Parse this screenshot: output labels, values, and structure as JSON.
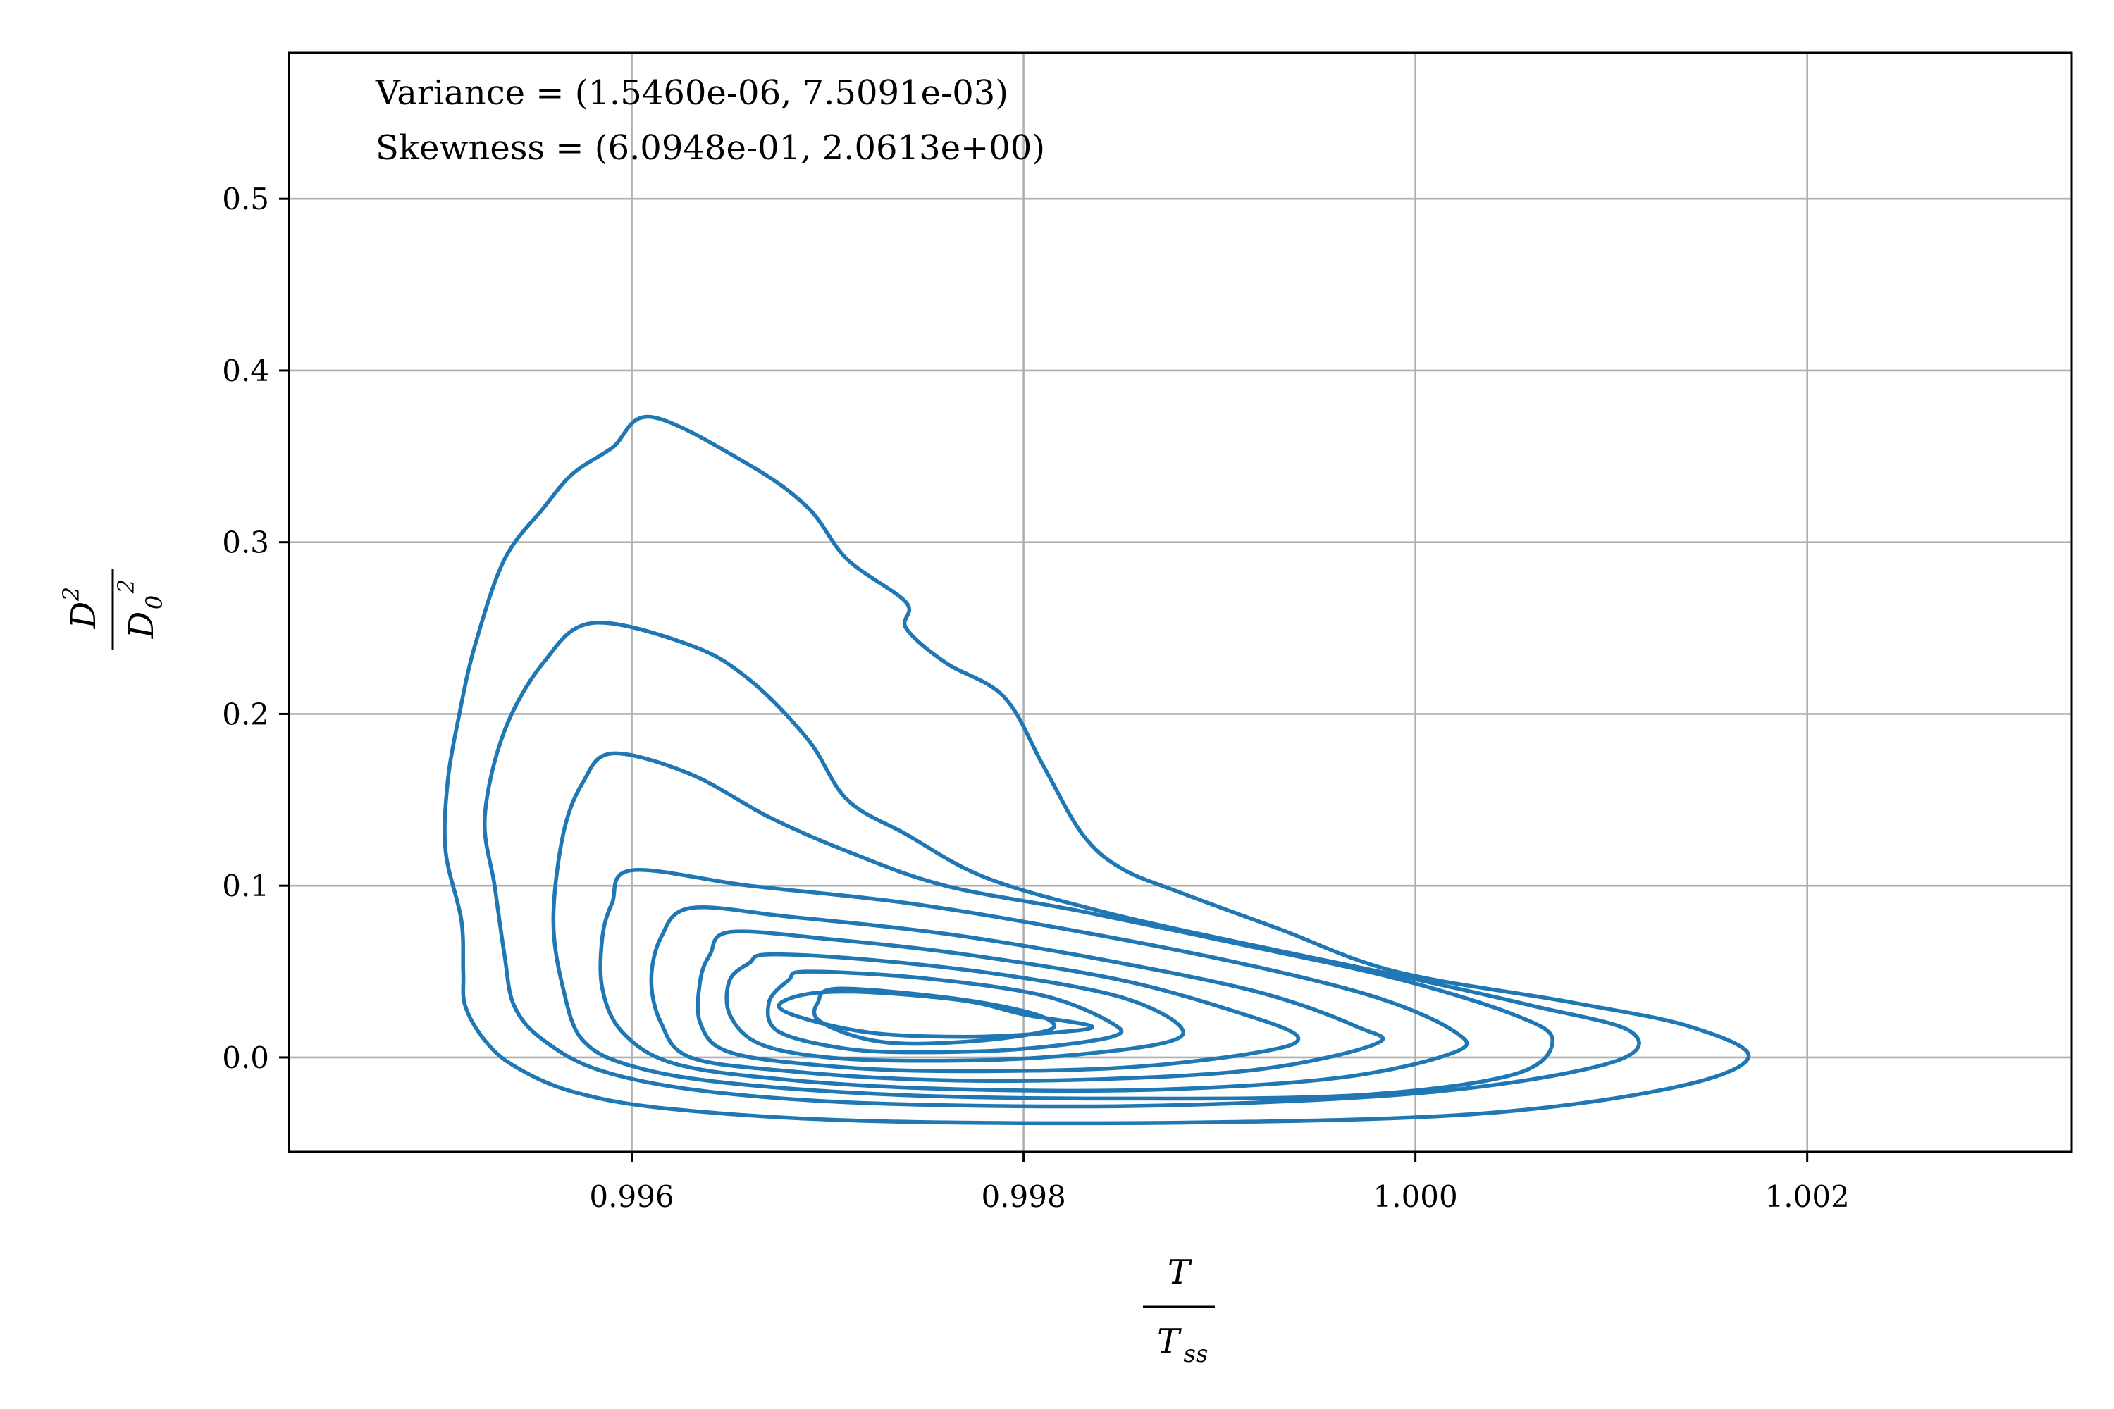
{
  "chart_data": {
    "type": "contour",
    "title": "",
    "annotations": [
      "Variance = (1.5460e-06, 7.5091e-03)",
      "Skewness = (6.0948e-01, 2.0613e+00)"
    ],
    "xlabel": {
      "numerator": "T",
      "denominator": "T",
      "denominator_subscript": "ss"
    },
    "ylabel": {
      "numerator": "D",
      "numerator_superscript": "2",
      "denominator": "D",
      "denominator_subscript": "0",
      "denominator_superscript": "2"
    },
    "xlim": [
      0.99425,
      1.00335
    ],
    "ylim": [
      -0.055,
      0.585
    ],
    "xticks": [
      0.996,
      0.998,
      1.0,
      1.002
    ],
    "xtick_labels": [
      "0.996",
      "0.998",
      "1.000",
      "1.002"
    ],
    "yticks": [
      0.0,
      0.1,
      0.2,
      0.3,
      0.4,
      0.5
    ],
    "ytick_labels": [
      "0.0",
      "0.1",
      "0.2",
      "0.3",
      "0.4",
      "0.5"
    ],
    "grid": true,
    "color": "#1f77b4",
    "contours": [
      {
        "level": 1,
        "points": [
          [
            0.9961,
            0.373
          ],
          [
            0.9966,
            0.345
          ],
          [
            0.9969,
            0.32
          ],
          [
            0.9971,
            0.29
          ],
          [
            0.9974,
            0.265
          ],
          [
            0.9974,
            0.25
          ],
          [
            0.9976,
            0.23
          ],
          [
            0.9979,
            0.21
          ],
          [
            0.9981,
            0.17
          ],
          [
            0.9983,
            0.13
          ],
          [
            0.9985,
            0.11
          ],
          [
            0.9988,
            0.096
          ],
          [
            0.9993,
            0.075
          ],
          [
            0.9999,
            0.05
          ],
          [
            1.0008,
            0.032
          ],
          [
            1.0014,
            0.018
          ],
          [
            1.0017,
            0.0
          ],
          [
            1.0013,
            -0.018
          ],
          [
            1.0003,
            -0.033
          ],
          [
            0.9988,
            -0.038
          ],
          [
            0.9972,
            -0.037
          ],
          [
            0.9962,
            -0.03
          ],
          [
            0.9957,
            -0.02
          ],
          [
            0.9954,
            -0.005
          ],
          [
            0.99525,
            0.01
          ],
          [
            0.99515,
            0.03
          ],
          [
            0.99514,
            0.05
          ],
          [
            0.99513,
            0.08
          ],
          [
            0.99505,
            0.12
          ],
          [
            0.99506,
            0.16
          ],
          [
            0.99512,
            0.2
          ],
          [
            0.9952,
            0.24
          ],
          [
            0.99535,
            0.29
          ],
          [
            0.99555,
            0.32
          ],
          [
            0.9957,
            0.34
          ],
          [
            0.9959,
            0.355
          ],
          [
            0.9961,
            0.373
          ]
        ]
      },
      {
        "level": 2,
        "points": [
          [
            0.9958,
            0.253
          ],
          [
            0.9963,
            0.24
          ],
          [
            0.9966,
            0.22
          ],
          [
            0.9969,
            0.185
          ],
          [
            0.9971,
            0.15
          ],
          [
            0.9974,
            0.13
          ],
          [
            0.9978,
            0.105
          ],
          [
            0.9984,
            0.085
          ],
          [
            0.9991,
            0.067
          ],
          [
            0.9999,
            0.048
          ],
          [
            1.0006,
            0.03
          ],
          [
            1.0011,
            0.015
          ],
          [
            1.001,
            -0.003
          ],
          [
            1.0001,
            -0.02
          ],
          [
            0.9987,
            -0.028
          ],
          [
            0.9973,
            -0.027
          ],
          [
            0.9964,
            -0.02
          ],
          [
            0.99585,
            -0.008
          ],
          [
            0.99555,
            0.01
          ],
          [
            0.9954,
            0.03
          ],
          [
            0.99535,
            0.06
          ],
          [
            0.9953,
            0.1
          ],
          [
            0.99525,
            0.14
          ],
          [
            0.99535,
            0.19
          ],
          [
            0.99555,
            0.23
          ],
          [
            0.9958,
            0.253
          ]
        ]
      },
      {
        "level": 3,
        "points": [
          [
            0.9959,
            0.177
          ],
          [
            0.9963,
            0.165
          ],
          [
            0.9967,
            0.14
          ],
          [
            0.9971,
            0.12
          ],
          [
            0.9976,
            0.1
          ],
          [
            0.9983,
            0.085
          ],
          [
            0.9991,
            0.066
          ],
          [
            0.9999,
            0.046
          ],
          [
            1.0005,
            0.025
          ],
          [
            1.0007,
            0.01
          ],
          [
            1.0005,
            -0.01
          ],
          [
            0.9997,
            -0.022
          ],
          [
            0.9985,
            -0.024
          ],
          [
            0.9974,
            -0.022
          ],
          [
            0.9965,
            -0.015
          ],
          [
            0.996,
            -0.005
          ],
          [
            0.99575,
            0.01
          ],
          [
            0.99565,
            0.04
          ],
          [
            0.9956,
            0.08
          ],
          [
            0.99565,
            0.13
          ],
          [
            0.99575,
            0.16
          ],
          [
            0.9959,
            0.177
          ]
        ]
      },
      {
        "level": 4,
        "points": [
          [
            0.996,
            0.109
          ],
          [
            0.9966,
            0.1
          ],
          [
            0.9974,
            0.09
          ],
          [
            0.9982,
            0.075
          ],
          [
            0.9991,
            0.055
          ],
          [
            0.9998,
            0.035
          ],
          [
            1.0002,
            0.015
          ],
          [
            1.0002,
            0.003
          ],
          [
            0.9996,
            -0.012
          ],
          [
            0.9986,
            -0.019
          ],
          [
            0.9975,
            -0.018
          ],
          [
            0.9967,
            -0.012
          ],
          [
            0.9962,
            -0.003
          ],
          [
            0.99595,
            0.015
          ],
          [
            0.99585,
            0.04
          ],
          [
            0.99585,
            0.07
          ],
          [
            0.9959,
            0.09
          ],
          [
            0.996,
            0.109
          ]
        ]
      },
      {
        "level": 5,
        "points": [
          [
            0.9963,
            0.087
          ],
          [
            0.9968,
            0.082
          ],
          [
            0.9976,
            0.072
          ],
          [
            0.9984,
            0.057
          ],
          [
            0.9992,
            0.038
          ],
          [
            0.9997,
            0.018
          ],
          [
            0.9998,
            0.008
          ],
          [
            0.9992,
            -0.007
          ],
          [
            0.9983,
            -0.013
          ],
          [
            0.9975,
            -0.013
          ],
          [
            0.9968,
            -0.008
          ],
          [
            0.9963,
            0.0
          ],
          [
            0.99615,
            0.02
          ],
          [
            0.9961,
            0.045
          ],
          [
            0.99615,
            0.07
          ],
          [
            0.9963,
            0.087
          ]
        ]
      },
      {
        "level": 6,
        "points": [
          [
            0.9965,
            0.073
          ],
          [
            0.997,
            0.069
          ],
          [
            0.9977,
            0.06
          ],
          [
            0.9985,
            0.045
          ],
          [
            0.9991,
            0.026
          ],
          [
            0.9994,
            0.012
          ],
          [
            0.9992,
            0.003
          ],
          [
            0.9985,
            -0.006
          ],
          [
            0.9976,
            -0.008
          ],
          [
            0.997,
            -0.005
          ],
          [
            0.9965,
            0.003
          ],
          [
            0.99635,
            0.02
          ],
          [
            0.99635,
            0.045
          ],
          [
            0.9964,
            0.06
          ],
          [
            0.9965,
            0.073
          ]
        ]
      },
      {
        "level": 7,
        "points": [
          [
            0.9967,
            0.06
          ],
          [
            0.9972,
            0.057
          ],
          [
            0.9979,
            0.048
          ],
          [
            0.9985,
            0.035
          ],
          [
            0.9988,
            0.018
          ],
          [
            0.9987,
            0.008
          ],
          [
            0.9981,
            0.0
          ],
          [
            0.9975,
            -0.002
          ],
          [
            0.997,
            0.0
          ],
          [
            0.99665,
            0.008
          ],
          [
            0.9965,
            0.025
          ],
          [
            0.9965,
            0.045
          ],
          [
            0.9966,
            0.055
          ],
          [
            0.9967,
            0.06
          ]
        ]
      },
      {
        "level": 8,
        "points": [
          [
            0.9969,
            0.05
          ],
          [
            0.9975,
            0.046
          ],
          [
            0.9981,
            0.036
          ],
          [
            0.99845,
            0.02
          ],
          [
            0.99845,
            0.012
          ],
          [
            0.998,
            0.005
          ],
          [
            0.9975,
            0.003
          ],
          [
            0.9971,
            0.005
          ],
          [
            0.99675,
            0.015
          ],
          [
            0.9967,
            0.032
          ],
          [
            0.9968,
            0.045
          ],
          [
            0.9969,
            0.05
          ]
        ]
      },
      {
        "level": 9,
        "points": [
          [
            0.99705,
            0.04
          ],
          [
            0.9976,
            0.035
          ],
          [
            0.998,
            0.027
          ],
          [
            0.99815,
            0.02
          ],
          [
            0.9981,
            0.015
          ],
          [
            0.9978,
            0.01
          ],
          [
            0.9974,
            0.008
          ],
          [
            0.99715,
            0.012
          ],
          [
            0.99695,
            0.022
          ],
          [
            0.99695,
            0.032
          ],
          [
            0.99705,
            0.04
          ]
        ]
      },
      {
        "level": 10,
        "points": [
          [
            0.9969,
            0.037
          ],
          [
            0.9972,
            0.038
          ],
          [
            0.9977,
            0.033
          ],
          [
            0.998,
            0.025
          ],
          [
            0.99835,
            0.018
          ],
          [
            0.9981,
            0.014
          ],
          [
            0.9977,
            0.012
          ],
          [
            0.99725,
            0.014
          ],
          [
            0.9969,
            0.022
          ],
          [
            0.99675,
            0.03
          ],
          [
            0.9969,
            0.037
          ]
        ]
      }
    ]
  }
}
